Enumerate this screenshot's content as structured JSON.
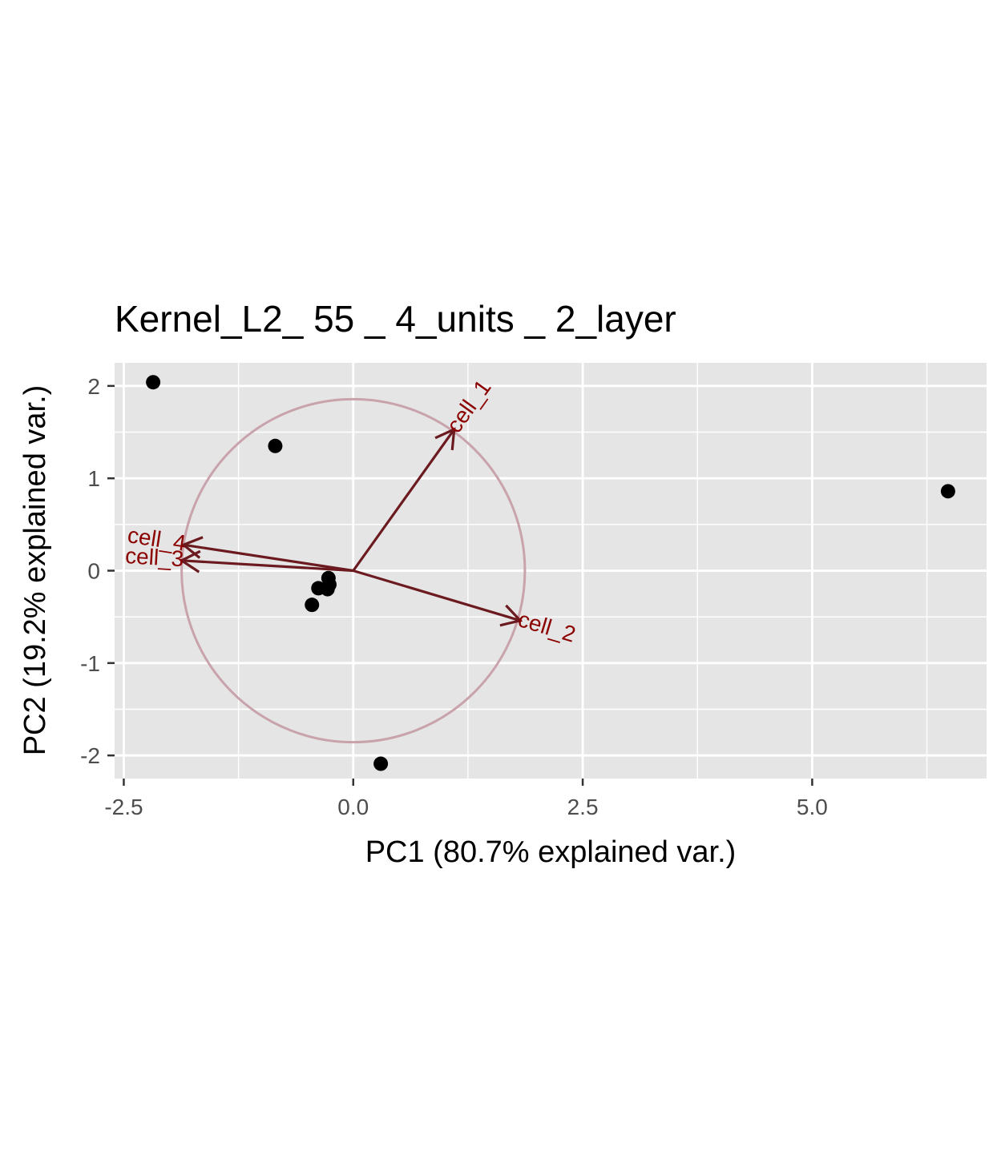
{
  "chart_data": {
    "type": "scatter",
    "title": "Kernel_L2_ 55 _ 4_units _ 2_layer",
    "xlabel": "PC1 (80.7% explained var.)",
    "ylabel": "PC2 (19.2% explained var.)",
    "xlim": [
      -2.6,
      6.9
    ],
    "ylim": [
      -2.25,
      2.25
    ],
    "x_ticks": [
      -2.5,
      0.0,
      2.5,
      5.0
    ],
    "x_tick_labels": [
      "-2.5",
      "0.0",
      "2.5",
      "5.0"
    ],
    "y_ticks": [
      -2,
      -1,
      0,
      1,
      2
    ],
    "y_tick_labels": [
      "-2",
      "-1",
      "0",
      "1",
      "2"
    ],
    "grid": true,
    "background_color": "#e5e5e5",
    "point_color": "#000000",
    "arrow_color": "#6b1a1f",
    "arrow_label_color": "#8b0000",
    "circle_color": "#c9a3ab",
    "points": [
      {
        "x": -2.18,
        "y": 2.04
      },
      {
        "x": -0.85,
        "y": 1.35
      },
      {
        "x": 6.48,
        "y": 0.86
      },
      {
        "x": -0.27,
        "y": -0.08
      },
      {
        "x": -0.26,
        "y": -0.15
      },
      {
        "x": -0.28,
        "y": -0.2
      },
      {
        "x": -0.38,
        "y": -0.19
      },
      {
        "x": -0.45,
        "y": -0.37
      },
      {
        "x": 0.3,
        "y": -2.09
      }
    ],
    "circle_radius": 1.87,
    "arrows": [
      {
        "name": "cell_1",
        "label": "cell_1",
        "x": 1.1,
        "y": 1.53
      },
      {
        "name": "cell_2",
        "label": "cell_2",
        "x": 1.82,
        "y": -0.54
      },
      {
        "name": "cell_3",
        "label": "cell_3",
        "x": -1.87,
        "y": 0.11
      },
      {
        "name": "cell_4",
        "label": "cell_4",
        "x": -1.85,
        "y": 0.28
      }
    ]
  }
}
